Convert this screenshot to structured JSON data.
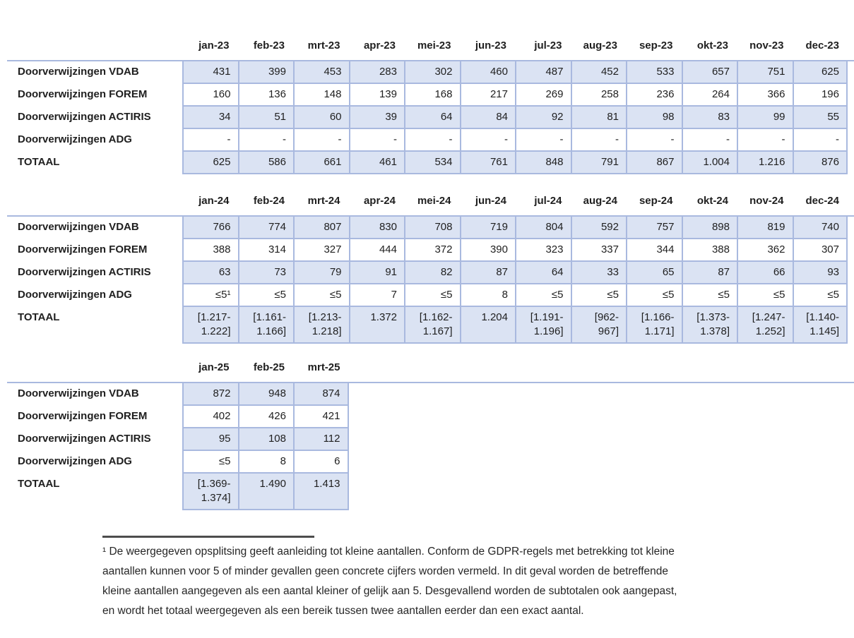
{
  "colors": {
    "cell_fill": "#dbe3f3",
    "cell_border": "#a9b9df",
    "footnote_rule": "#4d4d4d",
    "text": "#1f1f1f"
  },
  "tables": [
    {
      "key": "2023",
      "columns": [
        "jan-23",
        "feb-23",
        "mrt-23",
        "apr-23",
        "mei-23",
        "jun-23",
        "jul-23",
        "aug-23",
        "sep-23",
        "okt-23",
        "nov-23",
        "dec-23"
      ],
      "rows": [
        {
          "label": "Doorverwijzingen VDAB",
          "values": [
            "431",
            "399",
            "453",
            "283",
            "302",
            "460",
            "487",
            "452",
            "533",
            "657",
            "751",
            "625"
          ]
        },
        {
          "label": "Doorverwijzingen FOREM",
          "values": [
            "160",
            "136",
            "148",
            "139",
            "168",
            "217",
            "269",
            "258",
            "236",
            "264",
            "366",
            "196"
          ]
        },
        {
          "label": "Doorverwijzingen ACTIRIS",
          "values": [
            "34",
            "51",
            "60",
            "39",
            "64",
            "84",
            "92",
            "81",
            "98",
            "83",
            "99",
            "55"
          ]
        },
        {
          "label": "Doorverwijzingen ADG",
          "values": [
            "-",
            "-",
            "-",
            "-",
            "-",
            "-",
            "-",
            "-",
            "-",
            "-",
            "-",
            "-"
          ]
        },
        {
          "label": "TOTAAL",
          "values": [
            "625",
            "586",
            "661",
            "461",
            "534",
            "761",
            "848",
            "791",
            "867",
            "1.004",
            "1.216",
            "876"
          ]
        }
      ]
    },
    {
      "key": "2024",
      "columns": [
        "jan-24",
        "feb-24",
        "mrt-24",
        "apr-24",
        "mei-24",
        "jun-24",
        "jul-24",
        "aug-24",
        "sep-24",
        "okt-24",
        "nov-24",
        "dec-24"
      ],
      "rows": [
        {
          "label": "Doorverwijzingen VDAB",
          "values": [
            "766",
            "774",
            "807",
            "830",
            "708",
            "719",
            "804",
            "592",
            "757",
            "898",
            "819",
            "740"
          ]
        },
        {
          "label": "Doorverwijzingen FOREM",
          "values": [
            "388",
            "314",
            "327",
            "444",
            "372",
            "390",
            "323",
            "337",
            "344",
            "388",
            "362",
            "307"
          ]
        },
        {
          "label": "Doorverwijzingen ACTIRIS",
          "values": [
            "63",
            "73",
            "79",
            "91",
            "82",
            "87",
            "64",
            "33",
            "65",
            "87",
            "66",
            "93"
          ]
        },
        {
          "label": "Doorverwijzingen ADG",
          "values": [
            "≤5¹",
            "≤5",
            "≤5",
            "7",
            "≤5",
            "8",
            "≤5",
            "≤5",
            "≤5",
            "≤5",
            "≤5",
            "≤5"
          ]
        },
        {
          "label": "TOTAAL",
          "values": [
            "[1.217-\n1.222]",
            "[1.161-\n1.166]",
            "[1.213-\n1.218]",
            "1.372",
            "[1.162-\n1.167]",
            "1.204",
            "[1.191-\n1.196]",
            "[962-\n967]",
            "[1.166-\n1.171]",
            "[1.373-\n1.378]",
            "[1.247-\n1.252]",
            "[1.140-\n1.145]"
          ]
        }
      ]
    },
    {
      "key": "2025",
      "columns": [
        "jan-25",
        "feb-25",
        "mrt-25"
      ],
      "rows": [
        {
          "label": "Doorverwijzingen VDAB",
          "values": [
            "872",
            "948",
            "874"
          ]
        },
        {
          "label": "Doorverwijzingen FOREM",
          "values": [
            "402",
            "426",
            "421"
          ]
        },
        {
          "label": "Doorverwijzingen ACTIRIS",
          "values": [
            "95",
            "108",
            "112"
          ]
        },
        {
          "label": "Doorverwijzingen ADG",
          "values": [
            "≤5",
            "8",
            "6"
          ]
        },
        {
          "label": "TOTAAL",
          "values": [
            "[1.369-\n1.374]",
            "1.490",
            "1.413"
          ]
        }
      ]
    }
  ],
  "footnote": {
    "lines": [
      "¹ De weergegeven opsplitsing geeft aanleiding tot kleine aantallen. Conform de GDPR-regels met betrekking tot kleine",
      "aantallen kunnen voor 5 of minder gevallen geen concrete cijfers worden vermeld. In dit geval worden de betreffende",
      "kleine aantallen aangegeven als een aantal kleiner of gelijk aan 5. Desgevallend worden de subtotalen ook aangepast,",
      "en wordt het totaal weergegeven als een bereik tussen twee aantallen eerder dan een exact aantal."
    ]
  }
}
